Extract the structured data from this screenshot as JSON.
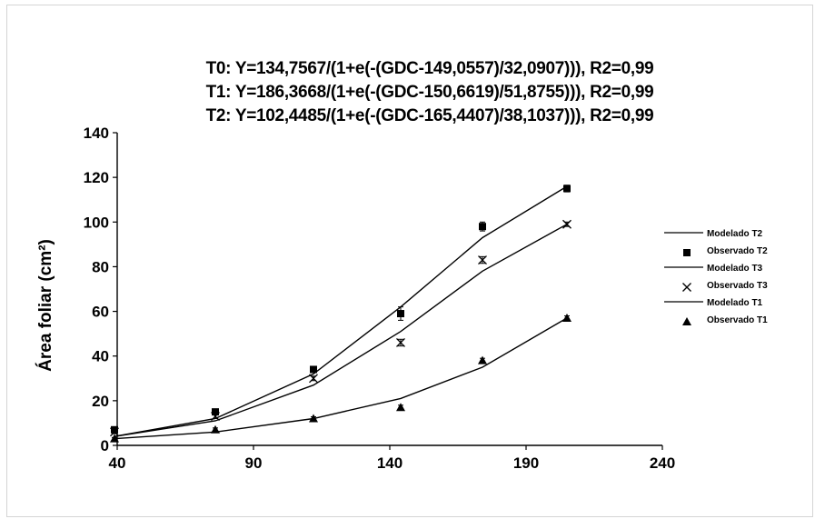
{
  "chart_data": {
    "type": "scatter",
    "title_lines": [
      "T0: Y=134,7567/(1+e(-(GDC-149,0557)/32,0907))), R2=0,99",
      "T1: Y=186,3668/(1+e(-(GDC-150,6619)/51,8755))), R2=0,99",
      "T2: Y=102,4485/(1+e(-(GDC-165,4407)/38,1037))), R2=0,99"
    ],
    "ylabel": "Área foliar (cm²)",
    "xlabel": "",
    "xlim": [
      40,
      240
    ],
    "ylim": [
      0,
      140
    ],
    "xticks": [
      "40",
      "90",
      "140",
      "190",
      "240"
    ],
    "yticks": [
      "0",
      "20",
      "40",
      "60",
      "80",
      "100",
      "120",
      "140"
    ],
    "grid": false,
    "legend_position": "right",
    "x": [
      39,
      76,
      112,
      144,
      174,
      205
    ],
    "series": [
      {
        "name": "Modelado T2",
        "kind": "line",
        "marker": "none",
        "values": [
          4,
          12,
          32,
          62,
          93,
          116
        ],
        "color": "#000000"
      },
      {
        "name": "Observado T2",
        "kind": "points",
        "marker": "square",
        "values": [
          7,
          15,
          34,
          59,
          98,
          115
        ],
        "error": [
          1,
          1,
          1.2,
          3,
          2,
          1.5
        ],
        "color": "#000000"
      },
      {
        "name": "Modelado T3",
        "kind": "line",
        "marker": "none",
        "values": [
          4,
          11,
          27,
          51,
          78,
          99
        ],
        "color": "#000000"
      },
      {
        "name": "Observado T3",
        "kind": "points",
        "marker": "x",
        "values": [
          6,
          13,
          30,
          46,
          83,
          99
        ],
        "error": [
          0.8,
          1,
          1,
          1.5,
          1.5,
          1
        ],
        "color": "#000000"
      },
      {
        "name": "Modelado T1",
        "kind": "line",
        "marker": "none",
        "values": [
          3,
          6,
          12,
          21,
          35,
          57
        ],
        "color": "#000000"
      },
      {
        "name": "Observado T1",
        "kind": "points",
        "marker": "triangle",
        "values": [
          3,
          7,
          12,
          17,
          38,
          57
        ],
        "error": [
          0.5,
          0.8,
          0.8,
          1,
          1,
          1
        ],
        "color": "#000000"
      }
    ]
  }
}
